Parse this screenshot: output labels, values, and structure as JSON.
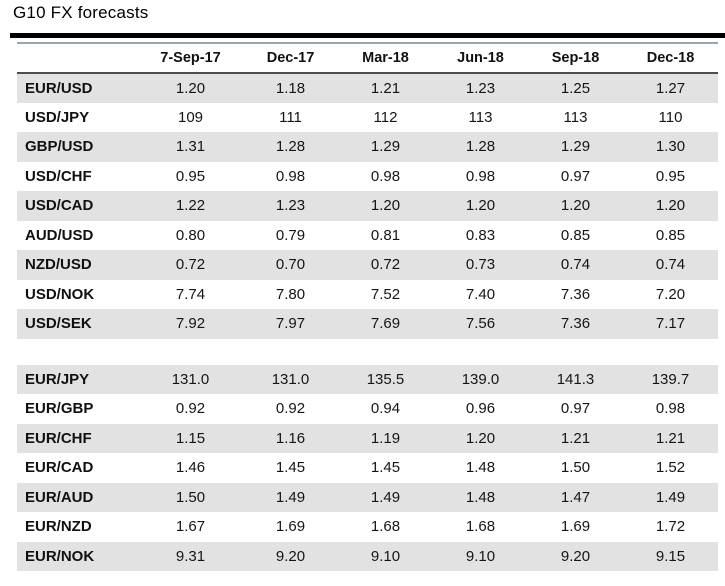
{
  "title": "G10 FX forecasts",
  "table": {
    "column_headers": [
      "",
      "7-Sep-17",
      "Dec-17",
      "Mar-18",
      "Jun-18",
      "Sep-18",
      "Dec-18"
    ],
    "blocks": [
      {
        "rows": [
          {
            "pair": "EUR/USD",
            "values": [
              "1.20",
              "1.18",
              "1.21",
              "1.23",
              "1.25",
              "1.27"
            ]
          },
          {
            "pair": "USD/JPY",
            "values": [
              "109",
              "111",
              "112",
              "113",
              "113",
              "110"
            ]
          },
          {
            "pair": "GBP/USD",
            "values": [
              "1.31",
              "1.28",
              "1.29",
              "1.28",
              "1.29",
              "1.30"
            ]
          },
          {
            "pair": "USD/CHF",
            "values": [
              "0.95",
              "0.98",
              "0.98",
              "0.98",
              "0.97",
              "0.95"
            ]
          },
          {
            "pair": "USD/CAD",
            "values": [
              "1.22",
              "1.23",
              "1.20",
              "1.20",
              "1.20",
              "1.20"
            ]
          },
          {
            "pair": "AUD/USD",
            "values": [
              "0.80",
              "0.79",
              "0.81",
              "0.83",
              "0.85",
              "0.85"
            ]
          },
          {
            "pair": "NZD/USD",
            "values": [
              "0.72",
              "0.70",
              "0.72",
              "0.73",
              "0.74",
              "0.74"
            ]
          },
          {
            "pair": "USD/NOK",
            "values": [
              "7.74",
              "7.80",
              "7.52",
              "7.40",
              "7.36",
              "7.20"
            ]
          },
          {
            "pair": "USD/SEK",
            "values": [
              "7.92",
              "7.97",
              "7.69",
              "7.56",
              "7.36",
              "7.17"
            ]
          }
        ]
      },
      {
        "rows": [
          {
            "pair": "EUR/JPY",
            "values": [
              "131.0",
              "131.0",
              "135.5",
              "139.0",
              "141.3",
              "139.7"
            ]
          },
          {
            "pair": "EUR/GBP",
            "values": [
              "0.92",
              "0.92",
              "0.94",
              "0.96",
              "0.97",
              "0.98"
            ]
          },
          {
            "pair": "EUR/CHF",
            "values": [
              "1.15",
              "1.16",
              "1.19",
              "1.20",
              "1.21",
              "1.21"
            ]
          },
          {
            "pair": "EUR/CAD",
            "values": [
              "1.46",
              "1.45",
              "1.45",
              "1.48",
              "1.50",
              "1.52"
            ]
          },
          {
            "pair": "EUR/AUD",
            "values": [
              "1.50",
              "1.49",
              "1.49",
              "1.48",
              "1.47",
              "1.49"
            ]
          },
          {
            "pair": "EUR/NZD",
            "values": [
              "1.67",
              "1.69",
              "1.68",
              "1.68",
              "1.69",
              "1.72"
            ]
          },
          {
            "pair": "EUR/NOK",
            "values": [
              "9.31",
              "9.20",
              "9.10",
              "9.10",
              "9.20",
              "9.15"
            ]
          }
        ]
      }
    ]
  },
  "chart_data": {
    "type": "table",
    "title": "G10 FX forecasts",
    "columns": [
      "7-Sep-17",
      "Dec-17",
      "Mar-18",
      "Jun-18",
      "Sep-18",
      "Dec-18"
    ],
    "rows": [
      {
        "pair": "EUR/USD",
        "values": [
          1.2,
          1.18,
          1.21,
          1.23,
          1.25,
          1.27
        ]
      },
      {
        "pair": "USD/JPY",
        "values": [
          109,
          111,
          112,
          113,
          113,
          110
        ]
      },
      {
        "pair": "GBP/USD",
        "values": [
          1.31,
          1.28,
          1.29,
          1.28,
          1.29,
          1.3
        ]
      },
      {
        "pair": "USD/CHF",
        "values": [
          0.95,
          0.98,
          0.98,
          0.98,
          0.97,
          0.95
        ]
      },
      {
        "pair": "USD/CAD",
        "values": [
          1.22,
          1.23,
          1.2,
          1.2,
          1.2,
          1.2
        ]
      },
      {
        "pair": "AUD/USD",
        "values": [
          0.8,
          0.79,
          0.81,
          0.83,
          0.85,
          0.85
        ]
      },
      {
        "pair": "NZD/USD",
        "values": [
          0.72,
          0.7,
          0.72,
          0.73,
          0.74,
          0.74
        ]
      },
      {
        "pair": "USD/NOK",
        "values": [
          7.74,
          7.8,
          7.52,
          7.4,
          7.36,
          7.2
        ]
      },
      {
        "pair": "USD/SEK",
        "values": [
          7.92,
          7.97,
          7.69,
          7.56,
          7.36,
          7.17
        ]
      },
      {
        "pair": "EUR/JPY",
        "values": [
          131.0,
          131.0,
          135.5,
          139.0,
          141.3,
          139.7
        ]
      },
      {
        "pair": "EUR/GBP",
        "values": [
          0.92,
          0.92,
          0.94,
          0.96,
          0.97,
          0.98
        ]
      },
      {
        "pair": "EUR/CHF",
        "values": [
          1.15,
          1.16,
          1.19,
          1.2,
          1.21,
          1.21
        ]
      },
      {
        "pair": "EUR/CAD",
        "values": [
          1.46,
          1.45,
          1.45,
          1.48,
          1.5,
          1.52
        ]
      },
      {
        "pair": "EUR/AUD",
        "values": [
          1.5,
          1.49,
          1.49,
          1.48,
          1.47,
          1.49
        ]
      },
      {
        "pair": "EUR/NZD",
        "values": [
          1.67,
          1.69,
          1.68,
          1.68,
          1.69,
          1.72
        ]
      },
      {
        "pair": "EUR/NOK",
        "values": [
          9.31,
          9.2,
          9.1,
          9.1,
          9.2,
          9.15
        ]
      }
    ]
  },
  "colors": {
    "stripe": "#e2e2e2",
    "rule_thick": "#000000",
    "rule_header_top": "#9aa5ad",
    "rule_header_bottom": "#4d4d4d",
    "text": "#151515"
  }
}
